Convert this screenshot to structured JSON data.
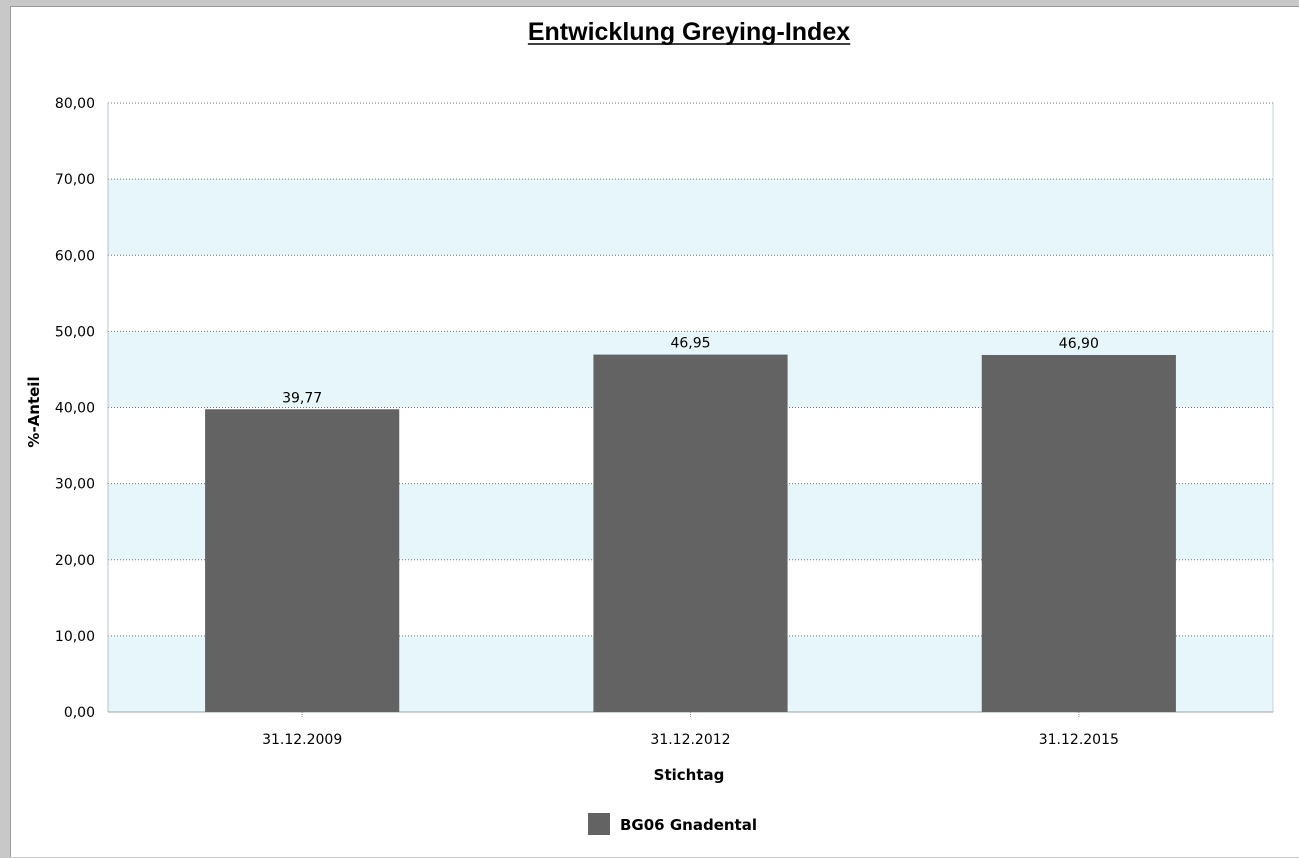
{
  "chart_data": {
    "type": "bar",
    "title": "Entwicklung Greying-Index",
    "xlabel": "Stichtag",
    "ylabel": "%-Anteil",
    "categories": [
      "31.12.2009",
      "31.12.2012",
      "31.12.2015"
    ],
    "series": [
      {
        "name": "BG06 Gnadental",
        "values": [
          39.77,
          46.95,
          46.9
        ],
        "labels": [
          "39,77",
          "46,95",
          "46,90"
        ],
        "color": "#636363"
      }
    ],
    "ylim": [
      0,
      80
    ],
    "yticks": [
      0,
      10,
      20,
      30,
      40,
      50,
      60,
      70,
      80
    ],
    "ytick_labels": [
      "0,00",
      "10,00",
      "20,00",
      "30,00",
      "40,00",
      "50,00",
      "60,00",
      "70,00",
      "80,00"
    ],
    "grid": true,
    "band_color": "#e6f6fa",
    "legend_position": "bottom-center"
  }
}
